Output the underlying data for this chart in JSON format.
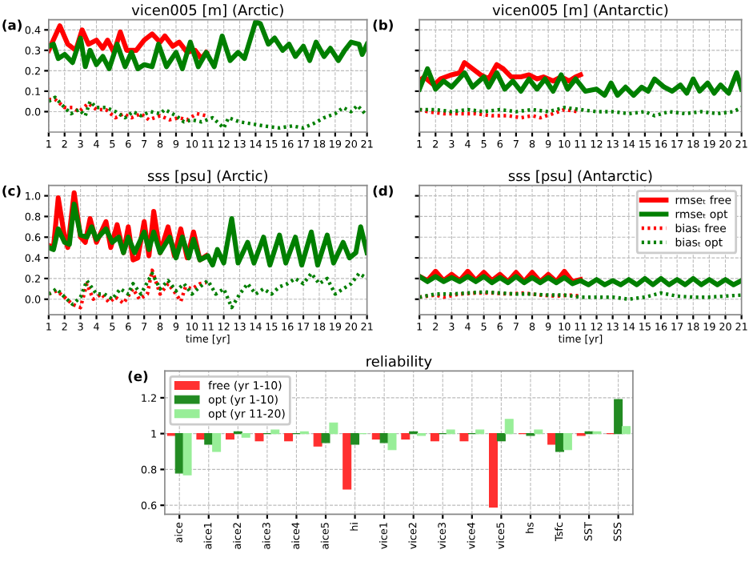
{
  "chart_data": [
    {
      "type": "line",
      "title": "vicen005 [m] (Arctic)",
      "annotations": [
        "(a)"
      ],
      "xlim": [
        1,
        21
      ],
      "xticks": [
        1,
        2,
        3,
        4,
        5,
        6,
        7,
        8,
        9,
        10,
        11,
        12,
        13,
        14,
        15,
        16,
        17,
        18,
        19,
        20,
        21
      ],
      "ylim": [
        -0.1,
        0.45
      ],
      "yticks": [
        {
          "value": 0,
          "label": "0.0"
        },
        0.1,
        0.2,
        0.3,
        0.4
      ],
      "grid": true,
      "legend": false,
      "series": [
        {
          "color": "#ff0000",
          "line_style": "solid",
          "x": [
            1,
            1.7,
            2.2,
            2.7,
            3.1,
            3.5,
            4,
            4.4,
            4.7,
            5.1,
            5.5,
            5.9,
            6.5,
            7,
            7.5,
            8,
            8.3,
            8.8,
            9.2,
            9.7,
            10.2,
            10.6,
            10.9
          ],
          "values": [
            0.3,
            0.42,
            0.33,
            0.3,
            0.4,
            0.33,
            0.35,
            0.31,
            0.35,
            0.29,
            0.39,
            0.3,
            0.3,
            0.35,
            0.38,
            0.34,
            0.37,
            0.32,
            0.34,
            0.29,
            0.3,
            0.26,
            0.29
          ]
        },
        {
          "color": "#007f00",
          "line_style": "solid",
          "x": [
            1,
            1.3,
            1.6,
            2,
            2.5,
            3,
            3.3,
            3.6,
            4,
            4.4,
            4.8,
            5.3,
            5.8,
            6.2,
            6.6,
            7,
            7.5,
            7.9,
            8.4,
            9,
            9.4,
            9.9,
            10.4,
            10.9,
            11.4,
            11.9,
            12.4,
            12.9,
            13.3,
            14,
            14.3,
            14.8,
            15.2,
            15.7,
            16.1,
            16.5,
            17,
            17.4,
            17.8,
            18.3,
            18.7,
            19.2,
            19.6,
            20,
            20.5,
            20.7,
            21
          ],
          "values": [
            0.32,
            0.33,
            0.26,
            0.28,
            0.24,
            0.36,
            0.22,
            0.3,
            0.23,
            0.27,
            0.21,
            0.33,
            0.22,
            0.29,
            0.21,
            0.23,
            0.22,
            0.33,
            0.22,
            0.29,
            0.21,
            0.34,
            0.22,
            0.29,
            0.22,
            0.37,
            0.25,
            0.29,
            0.26,
            0.44,
            0.43,
            0.33,
            0.36,
            0.3,
            0.33,
            0.27,
            0.32,
            0.25,
            0.34,
            0.27,
            0.31,
            0.25,
            0.3,
            0.34,
            0.33,
            0.28,
            0.33
          ]
        },
        {
          "color": "#ff0000",
          "line_style": "dotted",
          "x": [
            1,
            1.4,
            2,
            2.5,
            2.9,
            3.5,
            4,
            4.6,
            5.2,
            5.7,
            6.2,
            6.8,
            7.3,
            8,
            8.6,
            9.2,
            9.7,
            10.3,
            10.9
          ],
          "values": [
            0.06,
            0.06,
            0.02,
            0.02,
            0.0,
            0.04,
            0.01,
            0.01,
            -0.03,
            -0.01,
            -0.03,
            -0.01,
            -0.04,
            -0.02,
            -0.04,
            -0.03,
            -0.04,
            -0.01,
            -0.02
          ]
        },
        {
          "color": "#007f00",
          "line_style": "dotted",
          "x": [
            1,
            1.4,
            2,
            2.4,
            2.9,
            3.3,
            3.6,
            4,
            4.6,
            5.2,
            5.8,
            6.3,
            6.8,
            7.4,
            8,
            8.3,
            9,
            9.5,
            10,
            10.6,
            11.3,
            12,
            12.3,
            13,
            13.8,
            14.5,
            15.5,
            16.3,
            17,
            17.6,
            18.3,
            19,
            19.5,
            20,
            20.4,
            21
          ],
          "values": [
            0.05,
            0.07,
            0.02,
            -0.01,
            0.01,
            -0.02,
            0.05,
            0.02,
            0.02,
            0.0,
            -0.03,
            0.0,
            -0.02,
            0.0,
            -0.01,
            0.01,
            -0.02,
            -0.05,
            -0.04,
            -0.05,
            -0.03,
            -0.08,
            -0.03,
            -0.05,
            -0.06,
            -0.07,
            -0.08,
            -0.07,
            -0.08,
            -0.06,
            -0.03,
            -0.01,
            0.02,
            0.0,
            0.03,
            -0.02
          ]
        }
      ]
    },
    {
      "type": "line",
      "title": "vicen005 [m] (Antarctic)",
      "annotations": [
        "(b)"
      ],
      "xlim": [
        1,
        21
      ],
      "xticks": [
        1,
        2,
        3,
        4,
        5,
        6,
        7,
        8,
        9,
        10,
        11,
        12,
        13,
        14,
        15,
        16,
        17,
        18,
        19,
        20,
        21
      ],
      "ylim": [
        -0.1,
        0.45
      ],
      "yticks": [
        {
          "value": 0,
          "label": null
        },
        {
          "value": 0.1,
          "label": null
        },
        {
          "value": 0.2,
          "label": null
        },
        {
          "value": 0.3,
          "label": null
        },
        {
          "value": 0.4,
          "label": null
        }
      ],
      "tick_labels": "x",
      "grid": true,
      "legend": false,
      "series": [
        {
          "color": "#ff0000",
          "line_style": "solid",
          "x": [
            1,
            1.3,
            1.9,
            2.3,
            3,
            3.5,
            3.8,
            4.3,
            4.8,
            5.3,
            5.8,
            6.2,
            6.7,
            7.3,
            7.8,
            8.3,
            8.7,
            9.3,
            9.8,
            10.3,
            10.7,
            11
          ],
          "values": [
            0.15,
            0.17,
            0.13,
            0.16,
            0.18,
            0.19,
            0.24,
            0.21,
            0.18,
            0.16,
            0.23,
            0.21,
            0.17,
            0.17,
            0.18,
            0.16,
            0.17,
            0.15,
            0.17,
            0.15,
            0.17,
            0.18
          ]
        },
        {
          "color": "#007f00",
          "line_style": "solid",
          "x": [
            1,
            1.5,
            2,
            2.5,
            3,
            3.8,
            4.3,
            5,
            5.3,
            5.8,
            6.3,
            6.8,
            7.3,
            7.8,
            8.3,
            8.8,
            9.3,
            9.8,
            10.2,
            10.7,
            11.3,
            12,
            12.5,
            12.9,
            13.3,
            13.8,
            14.3,
            14.8,
            15.2,
            15.6,
            16.2,
            16.7,
            17.2,
            17.6,
            18,
            18.4,
            18.9,
            19.3,
            19.7,
            20.2,
            20.7,
            21
          ],
          "values": [
            0.11,
            0.21,
            0.11,
            0.15,
            0.12,
            0.19,
            0.12,
            0.17,
            0.12,
            0.19,
            0.11,
            0.15,
            0.1,
            0.16,
            0.11,
            0.16,
            0.1,
            0.18,
            0.11,
            0.16,
            0.1,
            0.11,
            0.08,
            0.14,
            0.08,
            0.12,
            0.08,
            0.12,
            0.1,
            0.16,
            0.12,
            0.1,
            0.13,
            0.09,
            0.16,
            0.1,
            0.14,
            0.09,
            0.13,
            0.09,
            0.19,
            0.11
          ]
        },
        {
          "color": "#ff0000",
          "line_style": "dotted",
          "x": [
            1,
            1.5,
            2.5,
            3.5,
            4.5,
            5.5,
            6.5,
            7.3,
            8,
            8.5,
            9.3,
            10,
            10.8
          ],
          "values": [
            0.01,
            0.0,
            -0.01,
            -0.01,
            -0.01,
            -0.02,
            -0.02,
            -0.03,
            -0.02,
            -0.03,
            -0.01,
            0.01,
            0.0
          ]
        },
        {
          "color": "#007f00",
          "line_style": "dotted",
          "x": [
            1,
            2,
            3,
            4,
            5,
            6,
            7,
            8,
            9,
            10,
            11,
            12,
            13,
            14,
            15,
            15.6,
            16.5,
            17.5,
            18.5,
            19.5,
            20.5,
            21
          ],
          "values": [
            0.01,
            0.01,
            0.0,
            0.01,
            0.0,
            0.01,
            0.0,
            0.01,
            0.0,
            0.02,
            0.01,
            0.0,
            0.0,
            -0.01,
            0.0,
            -0.02,
            0.0,
            -0.01,
            0.0,
            -0.01,
            0.0,
            0.02
          ]
        }
      ]
    },
    {
      "type": "line",
      "title": "sss [psu] (Arctic)",
      "xlabel": "time [yr]",
      "annotations": [
        "(c)"
      ],
      "xlim": [
        1,
        21
      ],
      "xticks": [
        1,
        2,
        3,
        4,
        5,
        6,
        7,
        8,
        9,
        10,
        11,
        12,
        13,
        14,
        15,
        16,
        17,
        18,
        19,
        20,
        21
      ],
      "ylim": [
        -0.15,
        1.1
      ],
      "yticks": [
        {
          "value": 0,
          "label": "0.0"
        },
        0.2,
        0.4,
        0.6,
        0.8,
        {
          "value": 1,
          "label": "1.0"
        }
      ],
      "grid": true,
      "legend": false,
      "series": [
        {
          "color": "#ff0000",
          "line_style": "solid",
          "x": [
            1,
            1.3,
            1.6,
            2,
            2.2,
            2.6,
            3,
            3.3,
            3.6,
            4,
            4.6,
            4.9,
            5.3,
            5.7,
            6,
            6.3,
            6.6,
            7,
            7.3,
            7.6,
            8,
            8.5,
            8.9,
            9.3,
            9.7,
            10.1,
            10.5,
            10.9
          ],
          "values": [
            0.52,
            0.5,
            0.98,
            0.6,
            0.5,
            1.03,
            0.6,
            0.55,
            0.78,
            0.55,
            0.75,
            0.5,
            0.72,
            0.45,
            0.7,
            0.38,
            0.4,
            0.75,
            0.42,
            0.85,
            0.45,
            0.7,
            0.42,
            0.68,
            0.4,
            0.65,
            0.38,
            0.42
          ]
        },
        {
          "color": "#007f00",
          "line_style": "solid",
          "x": [
            1,
            1.3,
            1.6,
            2,
            2.3,
            2.6,
            3,
            3.4,
            3.7,
            4,
            4.6,
            5,
            5.4,
            5.7,
            6,
            6.4,
            7,
            7.3,
            7.6,
            8,
            8.6,
            9,
            9.4,
            9.8,
            10.1,
            10.5,
            11,
            11.3,
            11.6,
            12,
            12.5,
            12.9,
            13.5,
            13.9,
            14.5,
            14.9,
            15.5,
            15.9,
            16.5,
            16.9,
            17.5,
            17.9,
            18.5,
            18.9,
            19.5,
            19.9,
            20.3,
            20.6,
            21
          ],
          "values": [
            0.5,
            0.48,
            0.68,
            0.55,
            0.53,
            0.92,
            0.62,
            0.6,
            0.7,
            0.58,
            0.68,
            0.55,
            0.6,
            0.45,
            0.6,
            0.45,
            0.65,
            0.48,
            0.65,
            0.45,
            0.6,
            0.4,
            0.6,
            0.4,
            0.58,
            0.38,
            0.42,
            0.33,
            0.48,
            0.35,
            0.78,
            0.35,
            0.55,
            0.35,
            0.6,
            0.33,
            0.62,
            0.35,
            0.6,
            0.33,
            0.65,
            0.33,
            0.62,
            0.35,
            0.55,
            0.4,
            0.45,
            0.7,
            0.45
          ]
        },
        {
          "color": "#ff0000",
          "line_style": "dotted",
          "x": [
            1,
            1.5,
            2,
            2.5,
            3,
            3.4,
            3.8,
            4.3,
            4.8,
            5.2,
            5.7,
            6.3,
            6.7,
            7.2,
            7.5,
            8,
            8.5,
            9,
            9.3,
            9.6,
            10,
            10.5,
            10.9
          ],
          "values": [
            0.05,
            0.08,
            0.02,
            -0.05,
            -0.08,
            0.15,
            0.0,
            0.05,
            -0.03,
            0.02,
            -0.04,
            0.1,
            0.0,
            0.05,
            0.28,
            0.05,
            0.15,
            0.05,
            -0.02,
            0.12,
            0.1,
            0.15,
            0.16
          ]
        },
        {
          "color": "#007f00",
          "line_style": "dotted",
          "x": [
            1,
            1.5,
            2,
            2.5,
            3,
            3.4,
            4,
            4.5,
            5,
            5.5,
            6,
            6.3,
            6.8,
            7.5,
            8,
            8.5,
            9,
            9.5,
            10,
            10.5,
            11,
            11.5,
            12,
            12.5,
            13,
            13.5,
            14,
            14.5,
            15,
            15.5,
            16,
            16.5,
            17,
            17.5,
            18,
            18.5,
            19,
            19.5,
            20,
            20.5,
            21
          ],
          "values": [
            0.05,
            0.1,
            0.02,
            -0.05,
            0.02,
            0.18,
            0.05,
            0.05,
            0.0,
            0.1,
            0.05,
            0.15,
            0.05,
            0.25,
            0.1,
            0.18,
            0.08,
            0.15,
            0.05,
            0.12,
            0.18,
            0.05,
            0.1,
            -0.08,
            0.05,
            0.15,
            0.05,
            0.1,
            0.05,
            0.12,
            0.15,
            0.2,
            0.15,
            0.25,
            0.15,
            0.2,
            0.05,
            0.1,
            0.15,
            0.25,
            0.2
          ]
        }
      ]
    },
    {
      "type": "line",
      "title": "sss [psu] (Antarctic)",
      "xlabel": "time [yr]",
      "annotations": [
        "(d)"
      ],
      "xlim": [
        1,
        21
      ],
      "xticks": [
        1,
        2,
        3,
        4,
        5,
        6,
        7,
        8,
        9,
        10,
        11,
        12,
        13,
        14,
        15,
        16,
        17,
        18,
        19,
        20,
        21
      ],
      "ylim": [
        -0.15,
        1.1
      ],
      "yticks": [
        {
          "value": 0,
          "label": null
        },
        {
          "value": 0.2,
          "label": null
        },
        {
          "value": 0.4,
          "label": null
        },
        {
          "value": 0.6,
          "label": null
        },
        {
          "value": 0.8,
          "label": null
        },
        {
          "value": 1,
          "label": null
        }
      ],
      "tick_labels": "x",
      "grid": true,
      "legend": "top right",
      "series": [
        {
          "name": "rmseₜ free",
          "color": "#ff0000",
          "line_style": "solid",
          "x": [
            1,
            1.5,
            2,
            2.5,
            3,
            3.5,
            4,
            4.5,
            5,
            5.5,
            6,
            6.5,
            7,
            7.5,
            8,
            8.5,
            9,
            9.5,
            10,
            10.5,
            11
          ],
          "values": [
            0.22,
            0.18,
            0.27,
            0.18,
            0.24,
            0.18,
            0.27,
            0.18,
            0.26,
            0.18,
            0.24,
            0.17,
            0.26,
            0.17,
            0.26,
            0.17,
            0.24,
            0.17,
            0.27,
            0.17,
            0.19
          ]
        },
        {
          "name": "rmseₜ opt",
          "color": "#007f00",
          "line_style": "solid",
          "x": [
            1,
            1.5,
            2,
            2.5,
            3,
            3.5,
            4,
            4.5,
            5,
            5.5,
            6,
            6.5,
            7,
            7.5,
            8,
            8.5,
            9,
            9.5,
            10,
            10.5,
            11,
            11.5,
            12,
            12.5,
            13,
            13.5,
            14,
            14.5,
            15,
            15.5,
            16,
            16.5,
            17,
            17.5,
            18,
            18.5,
            19,
            19.5,
            20,
            20.5,
            21
          ],
          "values": [
            0.22,
            0.17,
            0.22,
            0.17,
            0.21,
            0.17,
            0.22,
            0.17,
            0.22,
            0.16,
            0.21,
            0.16,
            0.22,
            0.16,
            0.21,
            0.16,
            0.21,
            0.16,
            0.21,
            0.15,
            0.18,
            0.14,
            0.19,
            0.14,
            0.18,
            0.14,
            0.19,
            0.14,
            0.2,
            0.14,
            0.2,
            0.14,
            0.19,
            0.14,
            0.2,
            0.14,
            0.19,
            0.14,
            0.19,
            0.14,
            0.18
          ]
        },
        {
          "name": "biasₜ free",
          "color": "#ff0000",
          "line_style": "dotted",
          "x": [
            1,
            2,
            2.5,
            3.5,
            4.5,
            5.5,
            6.5,
            7.5,
            8.5,
            9.5,
            10.5,
            11
          ],
          "values": [
            0.02,
            0.04,
            0.02,
            0.05,
            0.06,
            0.06,
            0.05,
            0.06,
            0.04,
            0.03,
            0.04,
            0.03
          ]
        },
        {
          "name": "biasₜ opt",
          "color": "#007f00",
          "line_style": "dotted",
          "x": [
            1,
            2,
            3,
            4,
            5,
            6,
            7,
            8,
            9,
            10,
            11,
            12,
            13,
            14,
            15,
            16,
            17,
            18,
            19,
            20,
            21
          ],
          "values": [
            0.02,
            0.05,
            0.05,
            0.06,
            0.07,
            0.06,
            0.05,
            0.05,
            0.04,
            0.04,
            0.02,
            0.02,
            0.02,
            0.0,
            0.02,
            0.06,
            0.03,
            0.02,
            0.02,
            0.03,
            0.04
          ]
        }
      ]
    },
    {
      "type": "bar",
      "title": "reliability",
      "annotations": [
        "(e)"
      ],
      "categories": [
        "aice",
        "aice1",
        "aice2",
        "aice3",
        "aice4",
        "aice5",
        "hi",
        "vice1",
        "vice2",
        "vice3",
        "vice4",
        "vice5",
        "hs",
        "Tsfc",
        "SST",
        "SSS"
      ],
      "ylim": [
        0.55,
        1.35
      ],
      "yticks": [
        0.6,
        0.8,
        1,
        1.2
      ],
      "grid": true,
      "legend": "top left",
      "series": [
        {
          "name": "free (yr 1-10)",
          "color": "#ff3030",
          "base": [
            1,
            1,
            1,
            1,
            1,
            1,
            1,
            1,
            1,
            1,
            1,
            1,
            1,
            1,
            1,
            1
          ],
          "values": [
            -0.01,
            -0.03,
            -0.03,
            -0.04,
            -0.04,
            -0.07,
            -0.31,
            -0.03,
            -0.03,
            -0.04,
            -0.04,
            -0.41,
            0,
            -0.06,
            -0.01,
            0
          ]
        },
        {
          "name": "opt (yr 1-10)",
          "color": "#228b22",
          "base": [
            1,
            1,
            1,
            1,
            1,
            1,
            1,
            1,
            1,
            1,
            1,
            1,
            1,
            1,
            1,
            1
          ],
          "values": [
            -0.22,
            -0.06,
            0.01,
            0,
            0,
            -0.05,
            -0.06,
            -0.05,
            0.01,
            0,
            0,
            -0.04,
            -0.01,
            -0.1,
            0.01,
            0.19
          ]
        },
        {
          "name": "opt (yr 11-20)",
          "color": "#98ee98",
          "base": [
            1,
            1,
            1,
            1,
            1,
            1,
            1,
            1,
            1,
            1,
            1,
            1,
            1,
            1,
            1,
            1
          ],
          "values": [
            -0.23,
            -0.1,
            -0.02,
            0.02,
            0.01,
            0.06,
            0,
            -0.09,
            -0.01,
            0.02,
            0.02,
            0.08,
            0.02,
            -0.09,
            0.01,
            0.04
          ]
        }
      ]
    }
  ]
}
